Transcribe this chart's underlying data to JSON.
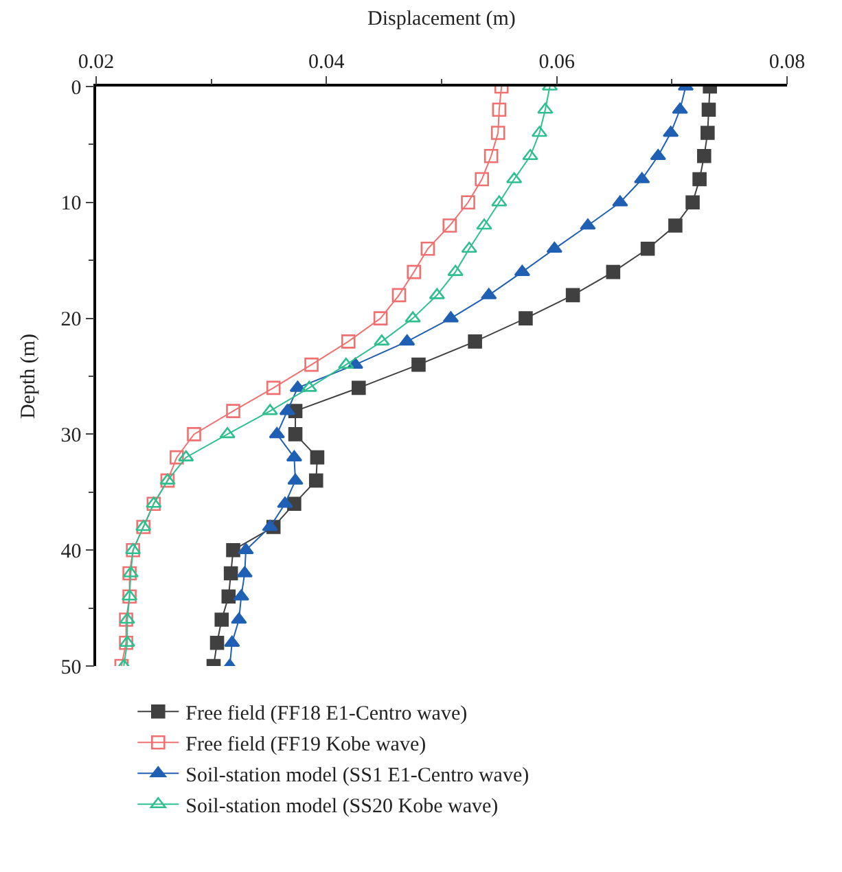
{
  "chart_data": {
    "type": "line",
    "xlabel": "Displacement (m)",
    "ylabel": "Depth (m)",
    "series": [
      {
        "name": "Free field (FF18 E1-Centro wave)",
        "color": "#404040",
        "marker": "square",
        "x": [
          0.0733,
          0.0732,
          0.0731,
          0.0728,
          0.0724,
          0.0718,
          0.0703,
          0.0679,
          0.0649,
          0.0614,
          0.0573,
          0.0529,
          0.048,
          0.0428,
          0.0373,
          0.0373,
          0.0392,
          0.0391,
          0.0372,
          0.0354,
          0.0319,
          0.0317,
          0.0315,
          0.0309,
          0.0305,
          0.0302
        ],
        "values": [
          0,
          2,
          4,
          6,
          8,
          10,
          12,
          14,
          16,
          18,
          20,
          22,
          24,
          26,
          28,
          30,
          32,
          34,
          36,
          38,
          40,
          42,
          44,
          46,
          48,
          50
        ]
      },
      {
        "name": "Free field (FF19 Kobe wave)",
        "color": "#f07070",
        "marker": "square",
        "x": [
          0.0552,
          0.055,
          0.0549,
          0.0543,
          0.0535,
          0.0523,
          0.0507,
          0.0488,
          0.0476,
          0.0463,
          0.0447,
          0.0419,
          0.0387,
          0.0354,
          0.0319,
          0.0285,
          0.027,
          0.0262,
          0.025,
          0.0241,
          0.0232,
          0.0229,
          0.0229,
          0.0226,
          0.0226,
          0.0222
        ],
        "values": [
          0,
          2,
          4,
          6,
          8,
          10,
          12,
          14,
          16,
          18,
          20,
          22,
          24,
          26,
          28,
          30,
          32,
          34,
          36,
          38,
          40,
          42,
          44,
          46,
          48,
          50
        ]
      },
      {
        "name": "Soil-station model (SS1 E1-Centro wave)",
        "color": "#1f5fb4",
        "marker": "triangle",
        "x": [
          0.0712,
          0.0707,
          0.0699,
          0.0688,
          0.0674,
          0.0655,
          0.0627,
          0.0598,
          0.057,
          0.0541,
          0.0508,
          0.047,
          0.0425,
          0.0375,
          0.0366,
          0.0357,
          0.0372,
          0.0373,
          0.0364,
          0.0351,
          0.033,
          0.0329,
          0.0326,
          0.0324,
          0.0318,
          0.0316
        ],
        "values": [
          0,
          2,
          4,
          6,
          8,
          10,
          12,
          14,
          16,
          18,
          20,
          22,
          24,
          26,
          28,
          30,
          32,
          34,
          36,
          38,
          40,
          42,
          44,
          46,
          48,
          50
        ]
      },
      {
        "name": "Soil-station model (SS20 Kobe wave)",
        "color": "#2fbf8f",
        "marker": "triangle",
        "x": [
          0.0594,
          0.059,
          0.0585,
          0.0577,
          0.0563,
          0.055,
          0.0537,
          0.0524,
          0.0512,
          0.0496,
          0.0475,
          0.0448,
          0.0417,
          0.0385,
          0.0351,
          0.0314,
          0.0278,
          0.0262,
          0.025,
          0.0241,
          0.0232,
          0.023,
          0.0229,
          0.0227,
          0.0227,
          0.0224
        ],
        "values": [
          0,
          2,
          4,
          6,
          8,
          10,
          12,
          14,
          16,
          18,
          20,
          22,
          24,
          26,
          28,
          30,
          32,
          34,
          36,
          38,
          40,
          42,
          44,
          46,
          48,
          50
        ]
      }
    ],
    "xlim": [
      0.02,
      0.08
    ],
    "xticks": [
      0.02,
      {
        "value": 0.03,
        "label": null
      },
      0.04,
      {
        "value": 0.05,
        "label": null
      },
      0.06,
      {
        "value": 0.07,
        "label": null
      },
      0.08
    ],
    "ylim": [
      50,
      0
    ],
    "yticks": [
      0,
      {
        "value": 5,
        "label": null
      },
      10,
      {
        "value": 15,
        "label": null
      },
      20,
      {
        "value": 25,
        "label": null
      },
      30,
      {
        "value": 35,
        "label": null
      },
      40,
      {
        "value": 45,
        "label": null
      },
      50
    ],
    "legend": "bottom",
    "line_style": "solid"
  }
}
